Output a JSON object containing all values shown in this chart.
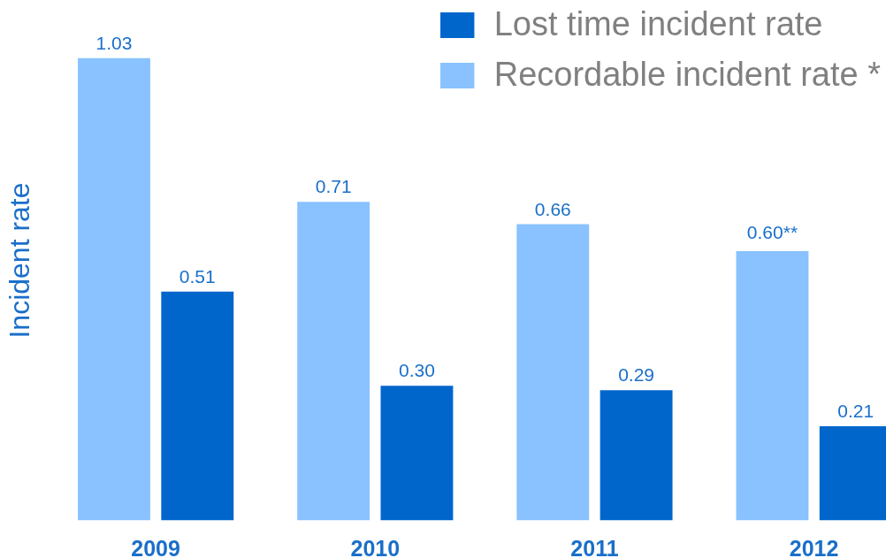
{
  "chart_data": {
    "type": "bar",
    "ylabel": "Incident rate",
    "categories": [
      "2009",
      "2010",
      "2011",
      "2012"
    ],
    "series": [
      {
        "name": "Lost time incident rate",
        "color": "#0066cc",
        "values": [
          0.51,
          0.3,
          0.29,
          0.21
        ],
        "value_labels": [
          "0.51",
          "0.30",
          "0.29",
          "0.21"
        ]
      },
      {
        "name": "Recordable incident rate *",
        "color": "#89c2ff",
        "values": [
          1.03,
          0.71,
          0.66,
          0.6
        ],
        "value_labels": [
          "1.03",
          "0.71",
          "0.66",
          "0.60**"
        ]
      }
    ],
    "tick_labels": "x",
    "grid": false,
    "legend": "top right"
  }
}
